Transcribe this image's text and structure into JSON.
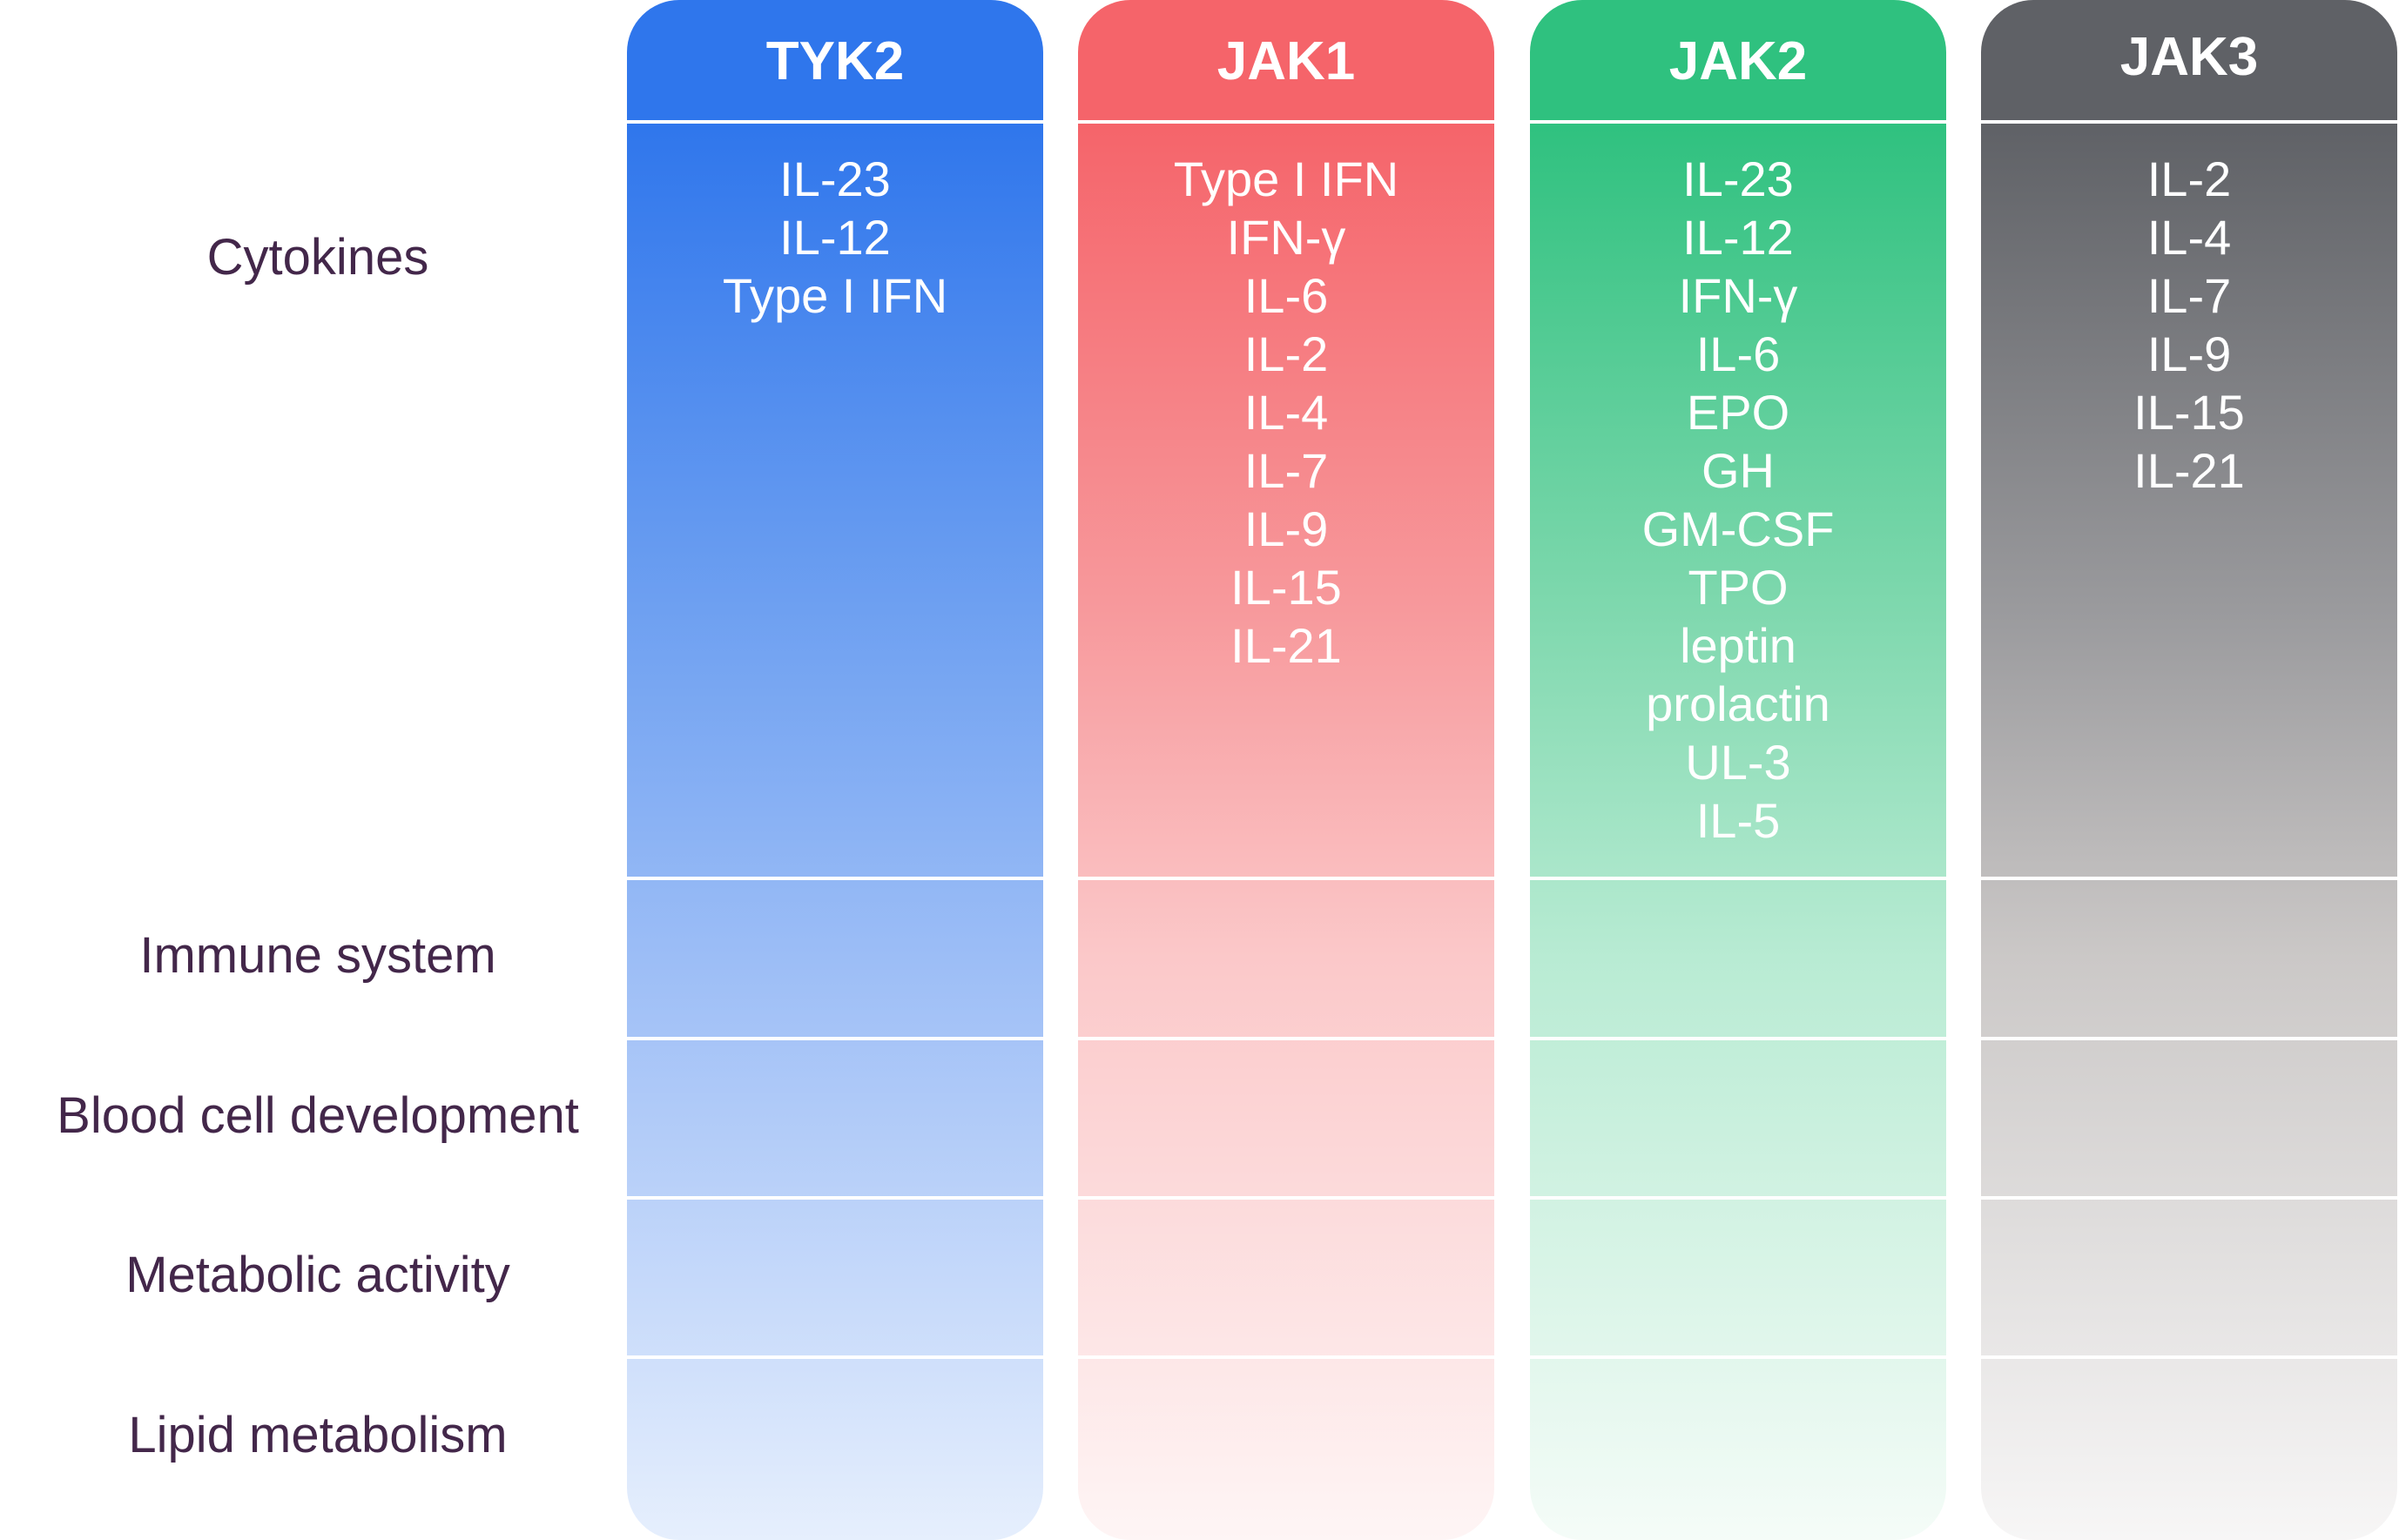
{
  "row_labels": {
    "cytokines": "Cytokines",
    "immune_system": "Immune system",
    "blood_cell_development": "Blood cell development",
    "metabolic_activity": "Metabolic activity",
    "lipid_metabolism": "Lipid metabolism"
  },
  "columns": [
    {
      "name": "TYK2",
      "color": "#2f76ec",
      "cytokines": [
        "IL-23",
        "IL-12",
        "Type I IFN"
      ]
    },
    {
      "name": "JAK1",
      "color": "#f5646a",
      "cytokines": [
        "Type I IFN",
        "IFN-γ",
        "IL-6",
        "IL-2",
        "IL-4",
        "IL-7",
        "IL-9",
        "IL-15",
        "IL-21"
      ]
    },
    {
      "name": "JAK2",
      "color": "#2fc17f",
      "cytokines": [
        "IL-23",
        "IL-12",
        "IFN-γ",
        "IL-6",
        "EPO",
        "GH",
        "GM-CSF",
        "TPO",
        "leptin",
        "prolactin",
        "UL-3",
        "IL-5"
      ]
    },
    {
      "name": "JAK3",
      "color": "#5f6166",
      "cytokines": [
        "IL-2",
        "IL-4",
        "IL-7",
        "IL-9",
        "IL-15",
        "IL-21"
      ]
    }
  ]
}
